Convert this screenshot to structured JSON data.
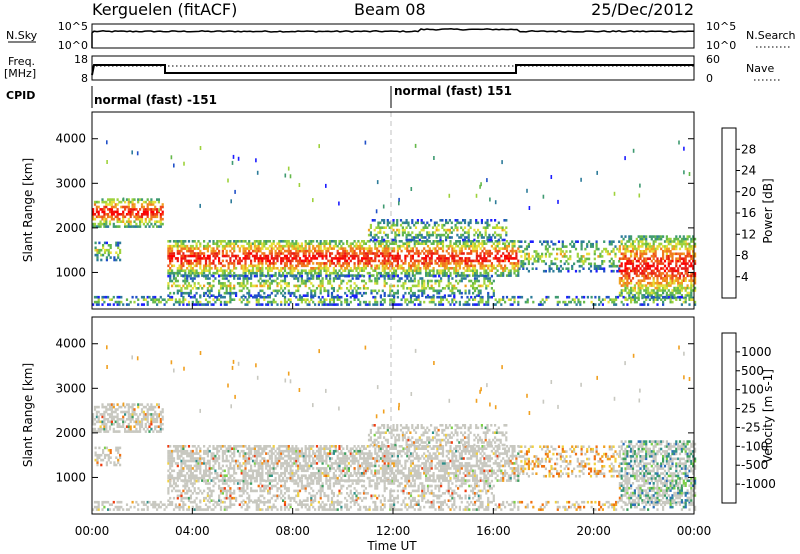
{
  "header": {
    "station": "Kerguelen (fitACF)",
    "beam": "Beam 08",
    "date": "25/Dec/2012"
  },
  "strips": {
    "nsky_label": "N.Sky",
    "nsky_ticks": [
      "10^5",
      "10^0"
    ],
    "nsearch_label": "N.Search",
    "nsearch_ticks": [
      "10^5",
      "10^0"
    ],
    "freq_label_1": "Freq.",
    "freq_label_2": "[MHz]",
    "freq_ticks": [
      "18",
      "8"
    ],
    "nave_label": "Nave",
    "nave_ticks": [
      "60",
      "0"
    ],
    "cpid_label": "CPID",
    "cpid_segments": [
      "normal (fast) -151",
      "normal (fast) 151"
    ],
    "cpid_switch_hour": 12.0
  },
  "chart_data": {
    "type": "heatmap",
    "x_axis": {
      "label": "Time UT",
      "range_hours": [
        0,
        24
      ],
      "tick_labels": [
        "00:00",
        "04:00",
        "08:00",
        "12:00",
        "16:00",
        "20:00",
        "00:00"
      ],
      "tick_hours": [
        0,
        4,
        8,
        12,
        16,
        20,
        24
      ]
    },
    "panels": [
      {
        "id": "power",
        "ylabel": "Slant Range [km]",
        "ylim": [
          180,
          4600
        ],
        "y_ticks": [
          1000,
          2000,
          3000,
          4000
        ],
        "colorbar": {
          "label": "Power [dB]",
          "tick_labels": [
            "28",
            "24",
            "20",
            "16",
            "12",
            "8",
            "4"
          ],
          "colors": [
            "#1c1cff",
            "#2050c8",
            "#2e7c9a",
            "#3e9a70",
            "#64b84a",
            "#9ed23c",
            "#e8e03a",
            "#f0a020",
            "#f07820",
            "#ef4a18",
            "#e81c14",
            "#ff0000"
          ]
        }
      },
      {
        "id": "velocity",
        "ylabel": "Slant Range [km]",
        "ylim": [
          180,
          4600
        ],
        "y_ticks": [
          1000,
          2000,
          3000,
          4000
        ],
        "colorbar": {
          "label": "Velocity [m s-1]",
          "tick_labels": [
            "1000",
            "500",
            "100",
            "25",
            "-25",
            "-100",
            "-500",
            "-1000"
          ],
          "colors": [
            "#2040d0",
            "#2c6fb8",
            "#2f8f8a",
            "#3ea060",
            "#7cd048",
            "#c8c8c0",
            "#c8c8c0",
            "#f0d040",
            "#f0a020",
            "#f07010",
            "#ef3c10",
            "#ff0000"
          ]
        }
      }
    ],
    "scatter_bands": [
      {
        "t0": 0.0,
        "t1": 2.8,
        "r0": 2000,
        "r1": 2650,
        "core": "strong"
      },
      {
        "t0": 0.1,
        "t1": 1.2,
        "r0": 1250,
        "r1": 1650,
        "core": "weak"
      },
      {
        "t0": 3.0,
        "t1": 17.0,
        "r0": 900,
        "r1": 1700,
        "core": "strong"
      },
      {
        "t0": 3.0,
        "t1": 16.0,
        "r0": 450,
        "r1": 900,
        "core": "weak"
      },
      {
        "t0": 11.0,
        "t1": 16.5,
        "r0": 1700,
        "r1": 2150,
        "core": "weak"
      },
      {
        "t0": 17.0,
        "t1": 21.0,
        "r0": 1000,
        "r1": 1700,
        "core": "weak"
      },
      {
        "t0": 21.0,
        "t1": 24.0,
        "r0": 400,
        "r1": 1800,
        "core": "strong"
      },
      {
        "t0": 0.0,
        "t1": 24.0,
        "r0": 250,
        "r1": 420,
        "core": "weak"
      }
    ]
  }
}
